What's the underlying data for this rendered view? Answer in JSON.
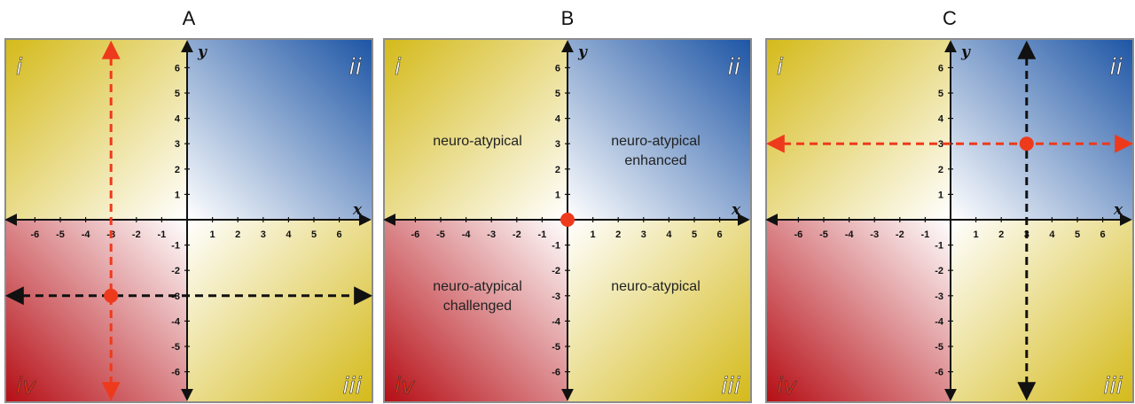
{
  "panels": [
    {
      "title": "A",
      "quadrant_labels": {
        "q1": "i",
        "q2": "ii",
        "q3": "iii",
        "q4": "iv"
      },
      "axis_names": {
        "x": "x",
        "y": "y"
      },
      "x_ticks": [
        "-6",
        "-5",
        "-4",
        "-3",
        "-2",
        "-1",
        "1",
        "2",
        "3",
        "4",
        "5",
        "6"
      ],
      "y_ticks": [
        "6",
        "5",
        "4",
        "3",
        "2",
        "1",
        "-1",
        "-2",
        "-3",
        "-4",
        "-5",
        "-6"
      ],
      "regions": [],
      "point": {
        "x": -3,
        "y": -3,
        "color": "#ee3a1c"
      },
      "guides": [
        {
          "orientation": "vertical",
          "at": -3,
          "color": "#ee3a1c"
        },
        {
          "orientation": "horizontal",
          "at": -3,
          "color": "#111111"
        }
      ]
    },
    {
      "title": "B",
      "quadrant_labels": {
        "q1": "i",
        "q2": "ii",
        "q3": "iii",
        "q4": "iv"
      },
      "axis_names": {
        "x": "x",
        "y": "y"
      },
      "x_ticks": [
        "-6",
        "-5",
        "-4",
        "-3",
        "-2",
        "-1",
        "1",
        "2",
        "3",
        "4",
        "5",
        "6"
      ],
      "y_ticks": [
        "6",
        "5",
        "4",
        "3",
        "2",
        "1",
        "-1",
        "-2",
        "-3",
        "-4",
        "-5",
        "-6"
      ],
      "regions": [
        {
          "quadrant": "top-left",
          "lines": [
            "neuro-atypical"
          ]
        },
        {
          "quadrant": "top-right",
          "lines": [
            "neuro-atypical",
            "enhanced"
          ]
        },
        {
          "quadrant": "bottom-left",
          "lines": [
            "neuro-atypical",
            "challenged"
          ]
        },
        {
          "quadrant": "bottom-right",
          "lines": [
            "neuro-atypical"
          ]
        }
      ],
      "point": {
        "x": 0,
        "y": 0,
        "color": "#ee3a1c"
      },
      "guides": []
    },
    {
      "title": "C",
      "quadrant_labels": {
        "q1": "i",
        "q2": "ii",
        "q3": "iii",
        "q4": "iv"
      },
      "axis_names": {
        "x": "x",
        "y": "y"
      },
      "x_ticks": [
        "-6",
        "-5",
        "-4",
        "-3",
        "-2",
        "-1",
        "1",
        "2",
        "3",
        "4",
        "5",
        "6"
      ],
      "y_ticks": [
        "6",
        "5",
        "4",
        "3",
        "2",
        "1",
        "-1",
        "-2",
        "-3",
        "-4",
        "-5",
        "-6"
      ],
      "regions": [],
      "point": {
        "x": 3,
        "y": 3,
        "color": "#ee3a1c"
      },
      "guides": [
        {
          "orientation": "vertical",
          "at": 3,
          "color": "#111111"
        },
        {
          "orientation": "horizontal",
          "at": 3,
          "color": "#ee3a1c"
        }
      ]
    }
  ],
  "colors": {
    "yellow": "#d4ba1a",
    "blue": "#1d55a5",
    "red": "#b50d14",
    "white": "#ffffff",
    "border": "#8c8c8c",
    "roman_light": "#ffffff",
    "roman_dark": "#ee2a12"
  }
}
